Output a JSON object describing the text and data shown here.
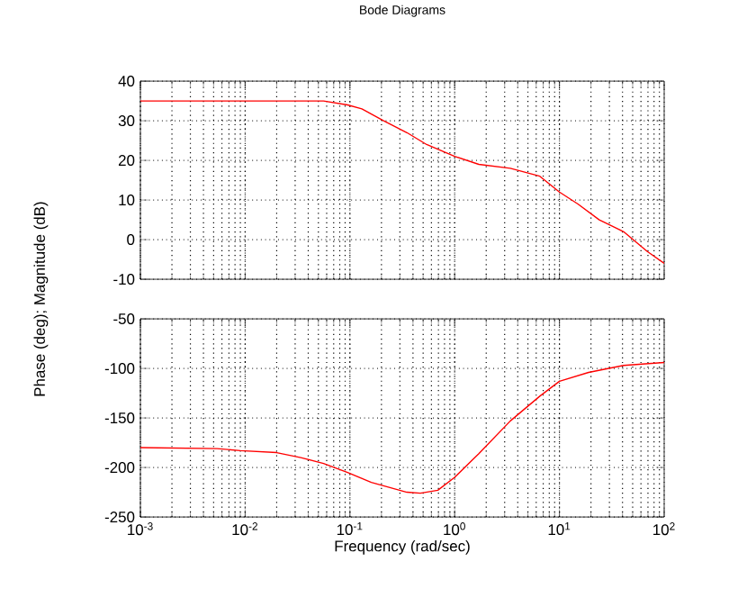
{
  "chart_data": [
    {
      "type": "line",
      "title": "Bode Diagrams",
      "ylabel": "Phase (deg); Magnitude (dB)",
      "log": "x",
      "grid": true,
      "tick_labels": "y",
      "color": "#ff0000",
      "x": [
        0.001,
        0.03,
        0.056,
        0.095,
        0.13,
        0.21,
        0.35,
        0.54,
        1.0,
        1.7,
        3.4,
        6.5,
        10,
        15,
        24,
        41,
        69,
        100
      ],
      "values": [
        35,
        35,
        35,
        34,
        33,
        30,
        27,
        24,
        21,
        19,
        18,
        16,
        12,
        9,
        5,
        2,
        -3,
        -6
      ],
      "xlim": [
        0.001,
        100
      ],
      "ylim": [
        -10,
        40
      ],
      "xticks": [
        {
          "value": 0.001,
          "label": null
        },
        {
          "value": 0.01,
          "label": null
        },
        {
          "value": 0.1,
          "label": null
        },
        {
          "value": 1,
          "label": null
        },
        {
          "value": 10,
          "label": null
        },
        {
          "value": 100,
          "label": null
        }
      ],
      "yticks": [
        -10,
        0,
        10,
        20,
        30,
        40
      ]
    },
    {
      "type": "line",
      "xlabel": "Frequency (rad/sec)",
      "log": "x",
      "grid": true,
      "color": "#ff0000",
      "x": [
        0.001,
        0.0054,
        0.009,
        0.02,
        0.034,
        0.056,
        0.095,
        0.16,
        0.35,
        0.47,
        0.69,
        1.0,
        1.7,
        3.4,
        6.5,
        10,
        19,
        41,
        100
      ],
      "values": [
        -180,
        -181,
        -183,
        -185,
        -190,
        -196,
        -205,
        -215,
        -225,
        -226,
        -223,
        -210,
        -186,
        -153,
        -128,
        -113,
        -104,
        -97,
        -94
      ],
      "xlim": [
        0.001,
        100
      ],
      "ylim": [
        -250,
        -50
      ],
      "xticks": [
        {
          "value": 0.001,
          "label": "10$^{-3}$"
        },
        {
          "value": 0.01,
          "label": "10$^{-2}$"
        },
        {
          "value": 0.1,
          "label": "10$^{-1}$"
        },
        {
          "value": 1,
          "label": "10$^{0}$"
        },
        {
          "value": 10,
          "label": "10$^{1}$"
        },
        {
          "value": 100,
          "label": "10$^{2}$"
        }
      ],
      "yticks": [
        -250,
        -200,
        -150,
        -100,
        -50
      ]
    }
  ]
}
